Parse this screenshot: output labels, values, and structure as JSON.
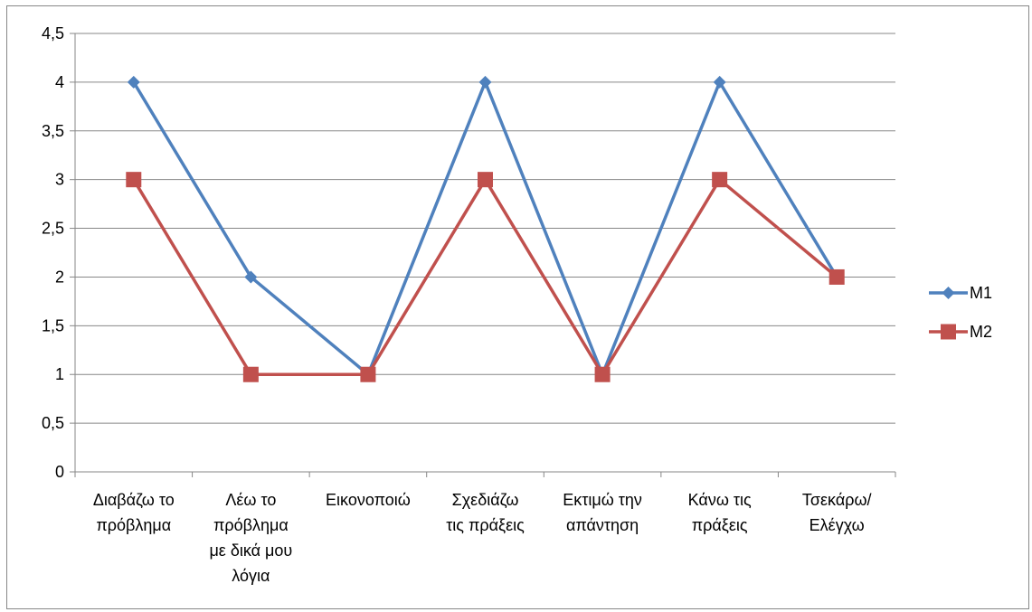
{
  "chart_data": {
    "type": "line",
    "title": "",
    "xlabel": "",
    "ylabel": "",
    "categories": [
      [
        "Διαβάζω το",
        "πρόβλημα"
      ],
      [
        "Λέω το",
        "πρόβλημα",
        "με δικά μου",
        "λόγια"
      ],
      [
        "Εικονοποιώ"
      ],
      [
        "Σχεδιάζω",
        "τις πράξεις"
      ],
      [
        "Εκτιμώ την",
        "απάντηση"
      ],
      [
        "Κάνω τις",
        "πράξεις"
      ],
      [
        "Τσεκάρω/",
        "Ελέγχω"
      ]
    ],
    "yticks": [
      "0",
      "0,5",
      "1",
      "1,5",
      "2",
      "2,5",
      "3",
      "3,5",
      "4",
      "4,5"
    ],
    "ylim": [
      0,
      4.5
    ],
    "grid": true,
    "legend_position": "right",
    "series": [
      {
        "name": "M1",
        "values": [
          4,
          2,
          1,
          4,
          1,
          4,
          2
        ],
        "color": "#4F81BD",
        "marker": "diamond"
      },
      {
        "name": "M2",
        "values": [
          3,
          1,
          1,
          3,
          1,
          3,
          2
        ],
        "color": "#C0504D",
        "marker": "square"
      }
    ]
  }
}
